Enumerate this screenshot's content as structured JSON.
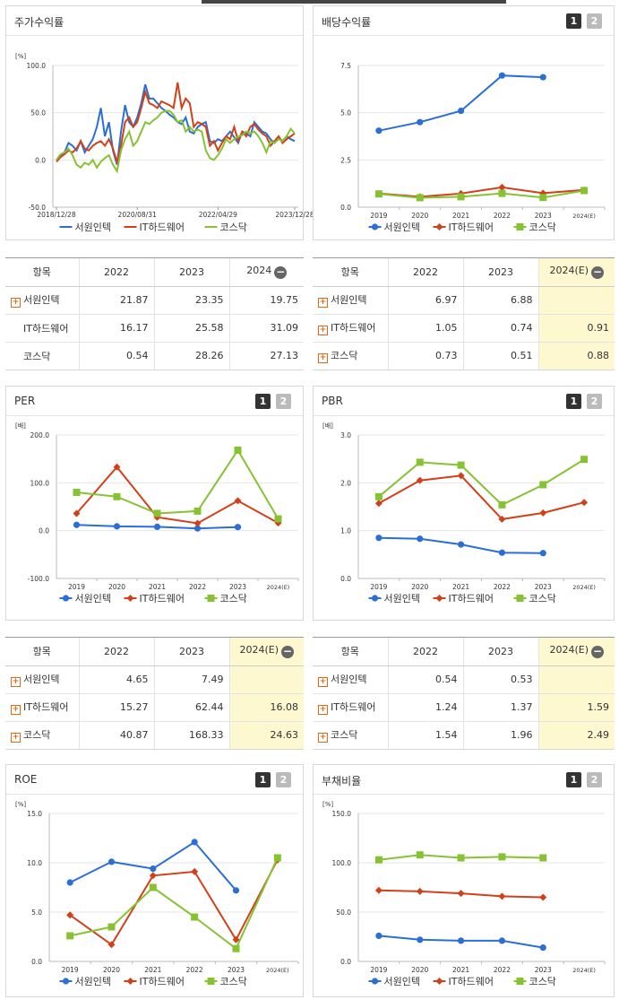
{
  "panels": {
    "stock": {
      "title": "주가수익률"
    },
    "dividend": {
      "title": "배당수익률",
      "btn1": "1",
      "btn2": "2"
    },
    "per": {
      "title": "PER",
      "btn1": "1",
      "btn2": "2"
    },
    "pbr": {
      "title": "PBR",
      "btn1": "1",
      "btn2": "2"
    },
    "roe": {
      "title": "ROE",
      "btn1": "1",
      "btn2": "2"
    },
    "debt": {
      "title": "부채비율",
      "btn1": "1",
      "btn2": "2"
    }
  },
  "tables": {
    "stock": {
      "headers": [
        "항목",
        "2022",
        "2023",
        "2024"
      ],
      "rows": [
        {
          "label": "서원인텍",
          "values": [
            "21.87",
            "23.35",
            "19.75"
          ]
        },
        {
          "label": "IT하드웨어",
          "values": [
            "16.17",
            "25.58",
            "31.09"
          ]
        },
        {
          "label": "코스닥",
          "values": [
            "0.54",
            "28.26",
            "27.13"
          ]
        }
      ]
    },
    "dividend": {
      "headers": [
        "항목",
        "2022",
        "2023",
        "2024(E)"
      ],
      "rows": [
        {
          "label": "서원인텍",
          "values": [
            "6.97",
            "6.88",
            ""
          ]
        },
        {
          "label": "IT하드웨어",
          "values": [
            "1.05",
            "0.74",
            "0.91"
          ]
        },
        {
          "label": "코스닥",
          "values": [
            "0.73",
            "0.51",
            "0.88"
          ]
        }
      ]
    },
    "per": {
      "headers": [
        "항목",
        "2022",
        "2023",
        "2024(E)"
      ],
      "rows": [
        {
          "label": "서원인텍",
          "values": [
            "4.65",
            "7.49",
            ""
          ]
        },
        {
          "label": "IT하드웨어",
          "values": [
            "15.27",
            "62.44",
            "16.08"
          ]
        },
        {
          "label": "코스닥",
          "values": [
            "40.87",
            "168.33",
            "24.63"
          ]
        }
      ]
    },
    "pbr": {
      "headers": [
        "항목",
        "2022",
        "2023",
        "2024(E)"
      ],
      "rows": [
        {
          "label": "서원인텍",
          "values": [
            "0.54",
            "0.53",
            ""
          ]
        },
        {
          "label": "IT하드웨어",
          "values": [
            "1.24",
            "1.37",
            "1.59"
          ]
        },
        {
          "label": "코스닥",
          "values": [
            "1.54",
            "1.96",
            "2.49"
          ]
        }
      ]
    }
  },
  "colors": {
    "s1": "#2b6fd6",
    "s2": "#d2401a",
    "s3": "#86c232"
  },
  "chart_data": [
    {
      "id": "stock",
      "type": "line",
      "title": "주가수익률",
      "ylabel": "[%]",
      "ylim": [
        -50,
        100
      ],
      "yticks": [
        "100.0",
        "50.0",
        "0.0",
        "-50.0"
      ],
      "xtick_labels": [
        "2018/12/28",
        "2020/08/31",
        "2022/04/29",
        "2023/12/28"
      ],
      "legend": [
        "서원인텍",
        "IT하드웨어",
        "코스닥"
      ],
      "series": [
        {
          "name": "서원인텍",
          "values": [
            0,
            5,
            8,
            18,
            15,
            10,
            20,
            8,
            15,
            22,
            35,
            55,
            25,
            40,
            10,
            -5,
            30,
            58,
            40,
            35,
            45,
            60,
            80,
            65,
            65,
            60,
            55,
            52,
            48,
            45,
            40,
            38,
            45,
            30,
            28,
            35,
            38,
            40,
            20,
            18,
            22,
            20,
            25,
            30,
            24,
            18,
            30,
            28,
            25,
            40,
            35,
            30,
            28,
            22,
            18,
            24,
            20,
            25,
            22,
            20
          ]
        },
        {
          "name": "IT하드웨어",
          "values": [
            -2,
            3,
            6,
            10,
            8,
            12,
            20,
            12,
            10,
            15,
            18,
            20,
            15,
            22,
            12,
            -2,
            15,
            40,
            45,
            35,
            40,
            55,
            72,
            60,
            58,
            55,
            62,
            60,
            58,
            55,
            82,
            55,
            65,
            60,
            35,
            40,
            38,
            35,
            15,
            20,
            10,
            18,
            25,
            22,
            35,
            20,
            30,
            25,
            35,
            38,
            32,
            28,
            25,
            15,
            20,
            25,
            18,
            22,
            25,
            28
          ]
        },
        {
          "name": "코스닥",
          "values": [
            0,
            6,
            8,
            12,
            5,
            -5,
            -8,
            -3,
            -5,
            0,
            -8,
            -2,
            2,
            5,
            -5,
            -12,
            10,
            22,
            30,
            15,
            20,
            30,
            40,
            38,
            42,
            45,
            50,
            52,
            52,
            48,
            40,
            42,
            30,
            35,
            30,
            32,
            30,
            10,
            2,
            0,
            5,
            12,
            22,
            18,
            22,
            25,
            26,
            30,
            28,
            30,
            25,
            18,
            8,
            20,
            18,
            22,
            20,
            25,
            33,
            28
          ]
        }
      ]
    },
    {
      "id": "dividend",
      "type": "line",
      "title": "배당수익률",
      "ylim": [
        0,
        7.5
      ],
      "yticks": [
        "7.5",
        "5.0",
        "2.5",
        "0.0"
      ],
      "categories": [
        "2019",
        "2020",
        "2021",
        "2022",
        "2023",
        "2024(E)"
      ],
      "legend": [
        "서원인텍",
        "IT하드웨어",
        "코스닥"
      ],
      "series": [
        {
          "name": "서원인텍",
          "values": [
            4.05,
            4.5,
            5.1,
            6.97,
            6.88,
            null
          ]
        },
        {
          "name": "IT하드웨어",
          "values": [
            0.72,
            0.55,
            0.72,
            1.05,
            0.74,
            0.91
          ]
        },
        {
          "name": "코스닥",
          "values": [
            0.7,
            0.5,
            0.55,
            0.73,
            0.51,
            0.88
          ]
        }
      ]
    },
    {
      "id": "per",
      "type": "line",
      "title": "PER",
      "ylabel": "[배]",
      "ylim": [
        -100,
        200
      ],
      "yticks": [
        "200.0",
        "100.0",
        "0.0",
        "-100.0"
      ],
      "categories": [
        "2019",
        "2020",
        "2021",
        "2022",
        "2023",
        "2024(E)"
      ],
      "legend": [
        "서원인텍",
        "IT하드웨어",
        "코스닥"
      ],
      "series": [
        {
          "name": "서원인텍",
          "values": [
            12,
            9,
            8,
            4.65,
            7.49,
            null
          ]
        },
        {
          "name": "IT하드웨어",
          "values": [
            36,
            133,
            28,
            15.27,
            62.44,
            16.08
          ]
        },
        {
          "name": "코스닥",
          "values": [
            80,
            71,
            36,
            40.87,
            168.33,
            24.63
          ]
        }
      ]
    },
    {
      "id": "pbr",
      "type": "line",
      "title": "PBR",
      "ylabel": "[배]",
      "ylim": [
        0,
        3
      ],
      "yticks": [
        "3.0",
        "2.0",
        "1.0",
        "0.0"
      ],
      "categories": [
        "2019",
        "2020",
        "2021",
        "2022",
        "2023",
        "2024(E)"
      ],
      "legend": [
        "서원인텍",
        "IT하드웨어",
        "코스닥"
      ],
      "series": [
        {
          "name": "서원인텍",
          "values": [
            0.85,
            0.83,
            0.71,
            0.54,
            0.53,
            null
          ]
        },
        {
          "name": "IT하드웨어",
          "values": [
            1.57,
            2.05,
            2.15,
            1.24,
            1.37,
            1.59
          ]
        },
        {
          "name": "코스닥",
          "values": [
            1.71,
            2.43,
            2.37,
            1.54,
            1.96,
            2.49
          ]
        }
      ]
    },
    {
      "id": "roe",
      "type": "line",
      "title": "ROE",
      "ylabel": "[%]",
      "ylim": [
        0,
        15
      ],
      "yticks": [
        "15.0",
        "10.0",
        "5.0",
        "0.0"
      ],
      "categories": [
        "2019",
        "2020",
        "2021",
        "2022",
        "2023",
        "2024(E)"
      ],
      "legend": [
        "서원인텍",
        "IT하드웨어",
        "코스닥"
      ],
      "series": [
        {
          "name": "서원인텍",
          "values": [
            8.0,
            10.1,
            9.4,
            12.1,
            7.2,
            null
          ]
        },
        {
          "name": "IT하드웨어",
          "values": [
            4.7,
            1.7,
            8.7,
            9.1,
            2.2,
            10.3
          ]
        },
        {
          "name": "코스닥",
          "values": [
            2.6,
            3.5,
            7.5,
            4.5,
            1.3,
            10.5
          ]
        }
      ]
    },
    {
      "id": "debt",
      "type": "line",
      "title": "부채비율",
      "ylabel": "[%]",
      "ylim": [
        0,
        150
      ],
      "yticks": [
        "150.0",
        "100.0",
        "50.0",
        "0.0"
      ],
      "categories": [
        "2019",
        "2020",
        "2021",
        "2022",
        "2023",
        "2024(E)"
      ],
      "legend": [
        "서원인텍",
        "IT하드웨어",
        "코스닥"
      ],
      "series": [
        {
          "name": "서원인텍",
          "values": [
            26,
            22,
            21,
            21,
            14,
            null
          ]
        },
        {
          "name": "IT하드웨어",
          "values": [
            72,
            71,
            69,
            66,
            65,
            null
          ]
        },
        {
          "name": "코스닥",
          "values": [
            103,
            108,
            105,
            106,
            105,
            null
          ]
        }
      ]
    }
  ]
}
